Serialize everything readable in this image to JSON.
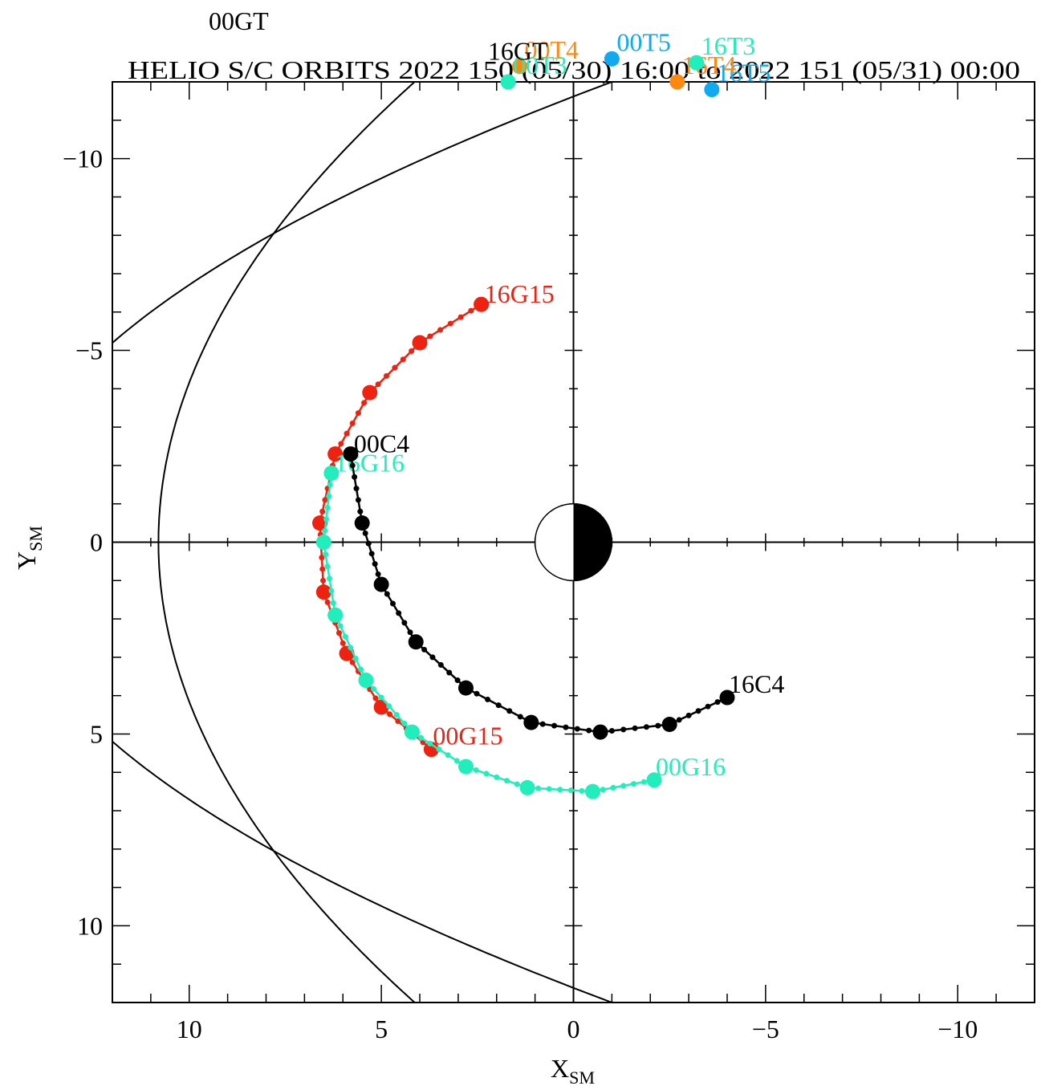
{
  "top_label": "00GT",
  "chart_data": {
    "type": "scatter",
    "title": "HELIO S/C ORBITS 2022 150 (05/30) 16:00 to 2022 151 (05/31) 00:00",
    "xlabel": {
      "main": "X",
      "sub": "SM"
    },
    "ylabel": {
      "main": "Y",
      "sub": "SM"
    },
    "xlim": [
      12,
      -12
    ],
    "ylim": [
      -12,
      12
    ],
    "x_ticks": [
      10,
      5,
      0,
      -5,
      -10
    ],
    "x_tick_labels": [
      "10",
      "5",
      "0",
      "−5",
      "−10"
    ],
    "y_ticks": [
      -10,
      -5,
      0,
      5,
      10
    ],
    "y_tick_labels": [
      "−10",
      "−5",
      "0",
      "5",
      "10"
    ],
    "grid": false,
    "colors": {
      "G15": "#ee2211",
      "G16": "#22eebb",
      "C4": "#000000",
      "T5": "#11aaee",
      "T4": "#ff8811",
      "axis": "#000000"
    },
    "boundaries": {
      "magnetopause": {
        "a": 10.8,
        "b": 5.4
      },
      "bow_shock": {
        "a": 15.0,
        "b": 2.25
      }
    },
    "earth_radius": 1,
    "series": [
      {
        "name": "G15",
        "color": "#ee2211",
        "start_label": "16G15",
        "end_label": "00G15",
        "points": [
          {
            "x": 2.4,
            "y": -6.2
          },
          {
            "x": 4.0,
            "y": -5.2
          },
          {
            "x": 5.3,
            "y": -3.9
          },
          {
            "x": 6.2,
            "y": -2.3
          },
          {
            "x": 6.6,
            "y": -0.5
          },
          {
            "x": 6.5,
            "y": 1.3
          },
          {
            "x": 5.9,
            "y": 2.9
          },
          {
            "x": 5.0,
            "y": 4.3
          },
          {
            "x": 3.7,
            "y": 5.4
          }
        ]
      },
      {
        "name": "G16",
        "color": "#22eebb",
        "start_label": "16G16",
        "end_label": "00G16",
        "points": [
          {
            "x": 6.3,
            "y": -1.8
          },
          {
            "x": 6.5,
            "y": 0.0
          },
          {
            "x": 6.2,
            "y": 1.9
          },
          {
            "x": 5.4,
            "y": 3.6
          },
          {
            "x": 4.2,
            "y": 4.95
          },
          {
            "x": 2.8,
            "y": 5.85
          },
          {
            "x": 1.2,
            "y": 6.4
          },
          {
            "x": -0.5,
            "y": 6.5
          },
          {
            "x": -2.1,
            "y": 6.2
          }
        ]
      },
      {
        "name": "C4",
        "color": "#000000",
        "start_label": "00C4",
        "end_label": "16C4",
        "points": [
          {
            "x": 5.8,
            "y": -2.3
          },
          {
            "x": 5.5,
            "y": -0.5
          },
          {
            "x": 5.0,
            "y": 1.1
          },
          {
            "x": 4.1,
            "y": 2.6
          },
          {
            "x": 2.8,
            "y": 3.8
          },
          {
            "x": 1.1,
            "y": 4.7
          },
          {
            "x": -0.7,
            "y": 4.95
          },
          {
            "x": -2.5,
            "y": 4.75
          },
          {
            "x": -4.0,
            "y": 4.05
          }
        ]
      }
    ],
    "offscale_markers": [
      {
        "label": "00T5",
        "color": "#11aaee",
        "x": -1.0,
        "y": -12.6
      },
      {
        "label": "16T5",
        "color": "#11aaee",
        "x": -3.6,
        "y": -11.8
      },
      {
        "label": "00T4",
        "color": "#ff8811",
        "x": 1.4,
        "y": -12.4
      },
      {
        "label": "16T4",
        "color": "#ff8811",
        "x": -2.7,
        "y": -12.0
      },
      {
        "label": "00T3",
        "color": "#22eebb",
        "x": 1.7,
        "y": -12.0
      },
      {
        "label": "16T3",
        "color": "#22eebb",
        "x": -3.2,
        "y": -12.5
      },
      {
        "label": "16GT",
        "color": "#000000",
        "x": 1.6,
        "y": -12.7
      }
    ]
  }
}
